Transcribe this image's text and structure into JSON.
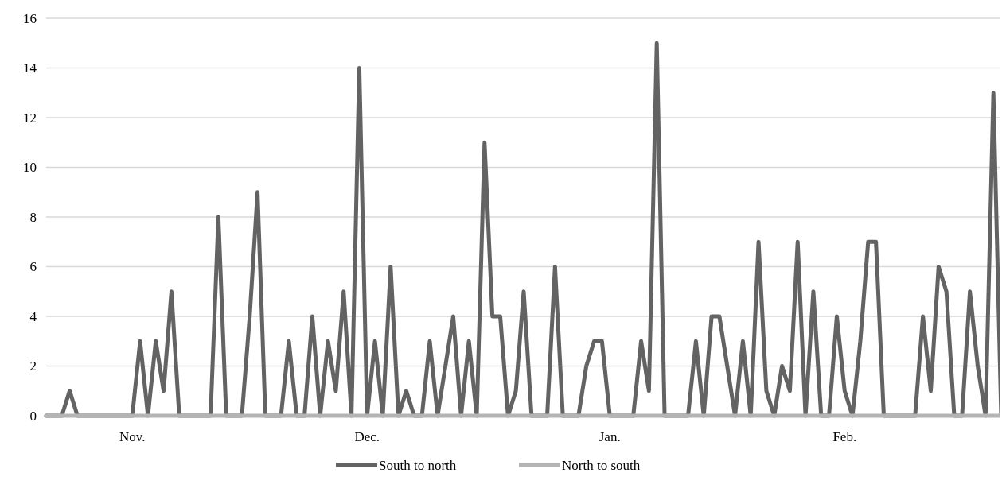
{
  "chart_data": {
    "type": "line",
    "categories": [
      null,
      null,
      null,
      null,
      null,
      null,
      null,
      null,
      null,
      null,
      null,
      "Nov.",
      null,
      null,
      null,
      null,
      null,
      null,
      null,
      null,
      null,
      null,
      null,
      null,
      null,
      null,
      null,
      null,
      null,
      null,
      null,
      null,
      null,
      null,
      null,
      null,
      null,
      null,
      null,
      null,
      null,
      "Dec.",
      null,
      null,
      null,
      null,
      null,
      null,
      null,
      null,
      null,
      null,
      null,
      null,
      null,
      null,
      null,
      null,
      null,
      null,
      null,
      null,
      null,
      null,
      null,
      null,
      null,
      null,
      null,
      null,
      null,
      null,
      "Jan.",
      null,
      null,
      null,
      null,
      null,
      null,
      null,
      null,
      null,
      null,
      null,
      null,
      null,
      null,
      null,
      null,
      null,
      null,
      null,
      null,
      null,
      null,
      null,
      null,
      null,
      null,
      null,
      null,
      null,
      "Feb.",
      null,
      null,
      null,
      null,
      null,
      null,
      null,
      null,
      null,
      null,
      null,
      null,
      null,
      null,
      null,
      null,
      null,
      null,
      null,
      null
    ],
    "series": [
      {
        "name": "South to north",
        "color": "#636363",
        "values": [
          0,
          0,
          0,
          1,
          0,
          0,
          0,
          0,
          0,
          0,
          0,
          0,
          3,
          0,
          3,
          1,
          5,
          0,
          0,
          0,
          0,
          0,
          8,
          0,
          0,
          0,
          4,
          9,
          0,
          0,
          0,
          3,
          0,
          0,
          4,
          0,
          3,
          1,
          5,
          0,
          14,
          0,
          3,
          0,
          6,
          0,
          1,
          0,
          0,
          3,
          0,
          2,
          4,
          0,
          3,
          0,
          11,
          4,
          4,
          0,
          1,
          5,
          0,
          0,
          0,
          6,
          0,
          0,
          0,
          2,
          3,
          3,
          0,
          0,
          0,
          0,
          3,
          1,
          15,
          0,
          0,
          0,
          0,
          3,
          0,
          4,
          4,
          2,
          0,
          3,
          0,
          7,
          1,
          0,
          2,
          1,
          7,
          0,
          5,
          0,
          0,
          4,
          1,
          0,
          3,
          7,
          7,
          0,
          0,
          0,
          0,
          0,
          4,
          1,
          6,
          5,
          0,
          0,
          5,
          2,
          0,
          13,
          0
        ]
      },
      {
        "name": "North to south",
        "color": "#b4b4b4",
        "values": [
          0,
          0,
          0,
          0,
          0,
          0,
          0,
          0,
          0,
          0,
          0,
          0,
          0,
          0,
          0,
          0,
          0,
          0,
          0,
          0,
          0,
          0,
          0,
          0,
          0,
          0,
          0,
          0,
          0,
          0,
          0,
          0,
          0,
          0,
          0,
          0,
          0,
          0,
          0,
          0,
          0,
          0,
          0,
          0,
          0,
          0,
          0,
          0,
          0,
          0,
          0,
          0,
          0,
          0,
          0,
          0,
          0,
          0,
          0,
          0,
          0,
          0,
          0,
          0,
          0,
          0,
          0,
          0,
          0,
          0,
          0,
          0,
          0,
          0,
          0,
          0,
          0,
          0,
          0,
          0,
          0,
          0,
          0,
          0,
          0,
          0,
          0,
          0,
          0,
          0,
          0,
          0,
          0,
          0,
          0,
          0,
          0,
          0,
          0,
          0,
          0,
          0,
          0,
          0,
          0,
          0,
          0,
          0,
          0,
          0,
          0,
          0,
          0,
          0,
          0,
          0,
          0,
          0,
          0,
          0,
          0,
          0,
          0
        ]
      }
    ],
    "ylim": [
      0,
      16
    ],
    "yticks": [
      0,
      2,
      4,
      6,
      8,
      10,
      12,
      14,
      16
    ],
    "grid": "y",
    "legend": "bottom",
    "marker": "none",
    "line_style": "solid"
  }
}
